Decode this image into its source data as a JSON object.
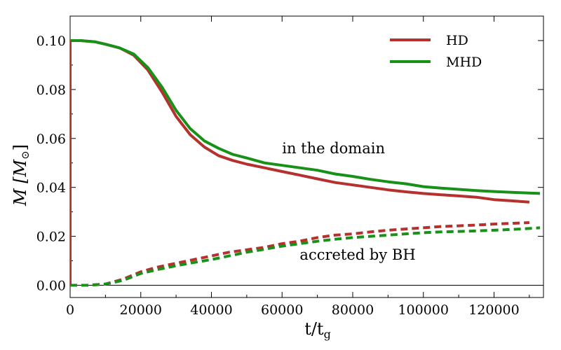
{
  "chart_data": {
    "type": "line",
    "title": "",
    "xlabel": "t/t",
    "xlabel_sub": "g",
    "ylabel": "M [M",
    "ylabel_sub": "⊙",
    "ylabel_close": "]",
    "xlim": [
      0,
      134000
    ],
    "ylim": [
      -0.005,
      0.11
    ],
    "x_ticks": [
      0,
      20000,
      40000,
      60000,
      80000,
      100000,
      120000
    ],
    "x_tick_labels": [
      "0",
      "20000",
      "40000",
      "60000",
      "80000",
      "100000",
      "120000"
    ],
    "y_ticks": [
      0.0,
      0.02,
      0.04,
      0.06,
      0.08,
      0.1
    ],
    "y_tick_labels": [
      "0.00",
      "0.02",
      "0.04",
      "0.06",
      "0.08",
      "0.10"
    ],
    "grid": false,
    "legend_position": "top-right",
    "colors": {
      "HD": "#b5312d",
      "MHD": "#189118",
      "zero_line": "#000000"
    },
    "series": [
      {
        "name": "HD",
        "role": "in the domain",
        "style": "solid",
        "x": [
          0,
          3000,
          7000,
          10000,
          14000,
          18000,
          22000,
          26000,
          30000,
          34000,
          38000,
          42000,
          46000,
          50000,
          55000,
          60000,
          65000,
          70000,
          75000,
          80000,
          85000,
          90000,
          95000,
          100000,
          105000,
          110000,
          115000,
          120000,
          125000,
          130000
        ],
        "values": [
          0.1,
          0.1,
          0.0995,
          0.0985,
          0.097,
          0.094,
          0.088,
          0.079,
          0.069,
          0.0615,
          0.0565,
          0.053,
          0.051,
          0.0495,
          0.048,
          0.0465,
          0.045,
          0.0435,
          0.042,
          0.041,
          0.04,
          0.039,
          0.0382,
          0.0375,
          0.037,
          0.0365,
          0.036,
          0.035,
          0.0345,
          0.034
        ]
      },
      {
        "name": "MHD",
        "role": "in the domain",
        "style": "solid",
        "x": [
          0,
          3000,
          7000,
          10000,
          14000,
          18000,
          22000,
          26000,
          30000,
          34000,
          38000,
          42000,
          46000,
          50000,
          55000,
          60000,
          65000,
          70000,
          75000,
          80000,
          85000,
          90000,
          95000,
          100000,
          105000,
          110000,
          115000,
          120000,
          125000,
          130000,
          133000
        ],
        "values": [
          0.1,
          0.1,
          0.0995,
          0.0985,
          0.097,
          0.0945,
          0.089,
          0.081,
          0.0715,
          0.064,
          0.059,
          0.056,
          0.0535,
          0.052,
          0.05,
          0.049,
          0.048,
          0.047,
          0.0455,
          0.0445,
          0.0433,
          0.0423,
          0.0415,
          0.0403,
          0.0397,
          0.0392,
          0.0387,
          0.0383,
          0.038,
          0.0377,
          0.0375
        ]
      },
      {
        "name": "HD",
        "role": "accreted by BH",
        "style": "dashed",
        "x": [
          0,
          5000,
          10000,
          15000,
          20000,
          25000,
          30000,
          35000,
          40000,
          45000,
          50000,
          55000,
          60000,
          65000,
          70000,
          75000,
          80000,
          85000,
          90000,
          95000,
          100000,
          105000,
          110000,
          115000,
          120000,
          125000,
          130000
        ],
        "values": [
          0.0,
          0.0,
          0.0005,
          0.0025,
          0.0055,
          0.0075,
          0.009,
          0.0105,
          0.012,
          0.0135,
          0.0145,
          0.0155,
          0.017,
          0.018,
          0.0195,
          0.0205,
          0.021,
          0.0218,
          0.0225,
          0.023,
          0.0235,
          0.024,
          0.0243,
          0.0246,
          0.025,
          0.0253,
          0.0256
        ]
      },
      {
        "name": "MHD",
        "role": "accreted by BH",
        "style": "dashed",
        "x": [
          0,
          5000,
          10000,
          15000,
          20000,
          25000,
          30000,
          35000,
          40000,
          45000,
          50000,
          55000,
          60000,
          65000,
          70000,
          75000,
          80000,
          85000,
          90000,
          95000,
          100000,
          105000,
          110000,
          115000,
          120000,
          125000,
          130000,
          133000
        ],
        "values": [
          0.0,
          0.0,
          0.0005,
          0.002,
          0.0048,
          0.0065,
          0.008,
          0.0093,
          0.0105,
          0.012,
          0.0135,
          0.0147,
          0.016,
          0.017,
          0.018,
          0.0188,
          0.0195,
          0.02,
          0.0205,
          0.021,
          0.0215,
          0.0218,
          0.022,
          0.0222,
          0.0225,
          0.0228,
          0.0232,
          0.0235
        ]
      }
    ],
    "annotations": [
      {
        "text": "in the domain",
        "x": 60000,
        "y": 0.054
      },
      {
        "text": "accreted by BH",
        "x": 65000,
        "y": 0.0105
      }
    ],
    "legend": [
      {
        "label": "HD",
        "color": "#b5312d"
      },
      {
        "label": "MHD",
        "color": "#189118"
      }
    ]
  }
}
